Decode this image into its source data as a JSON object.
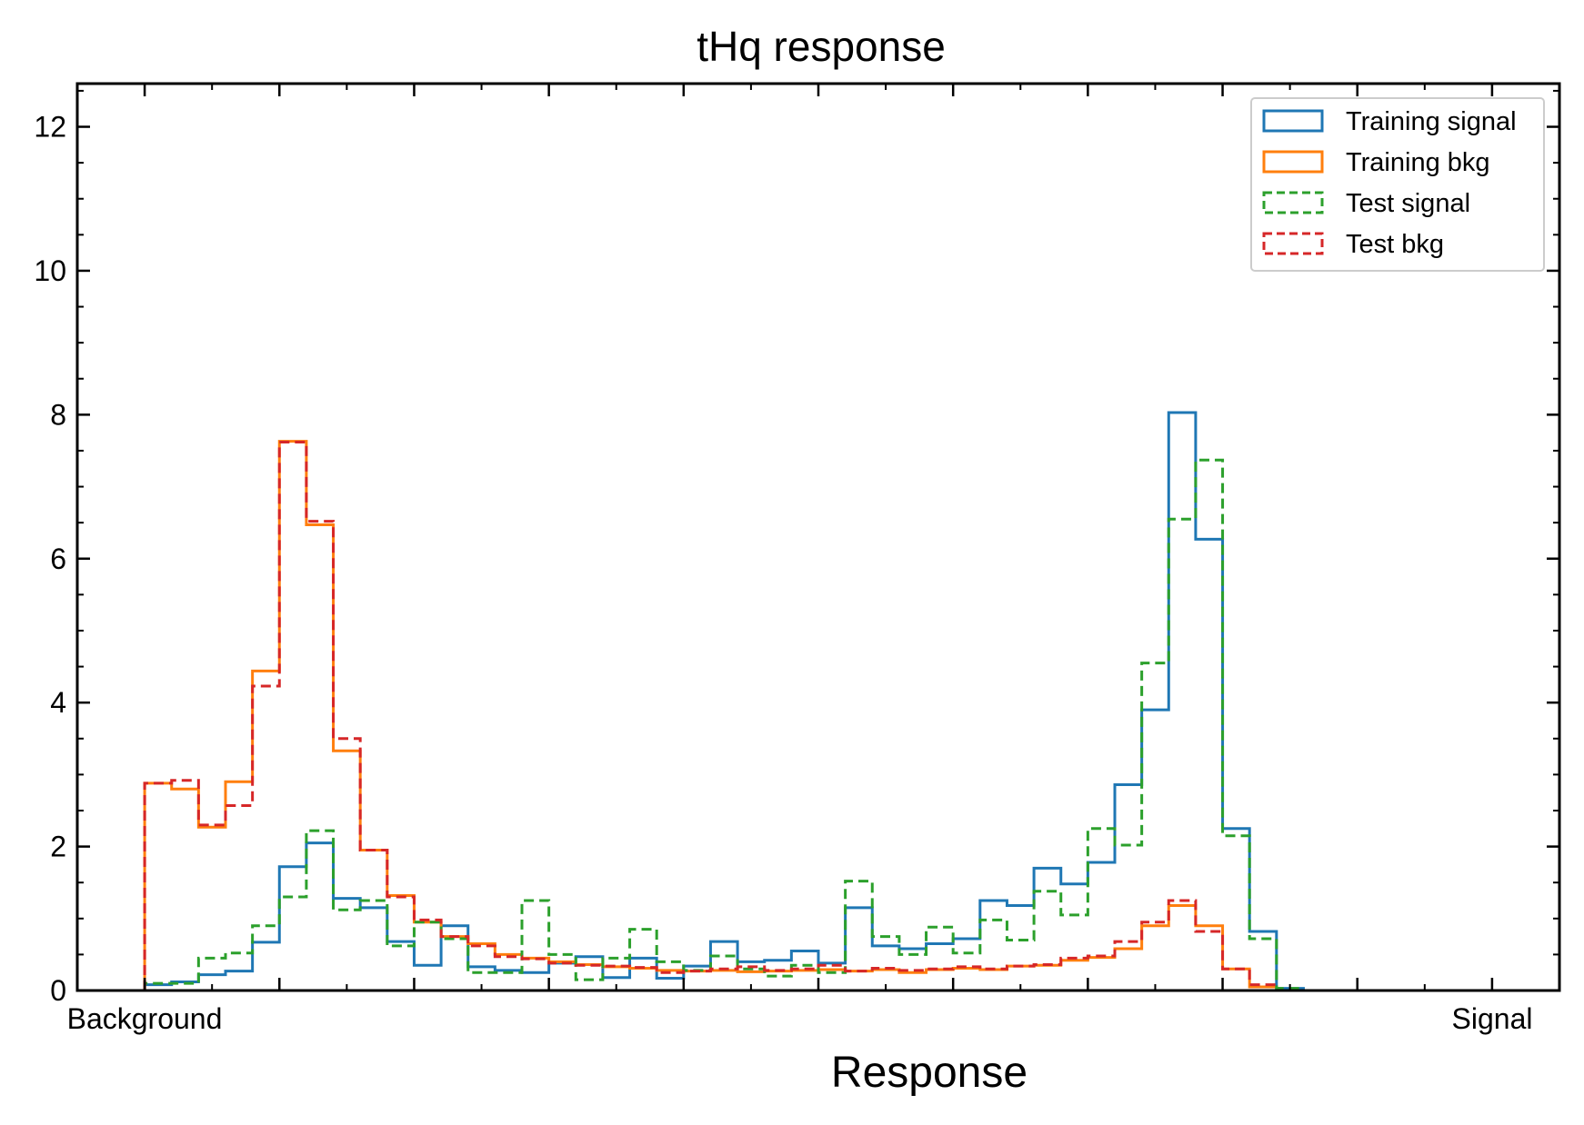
{
  "chart_data": {
    "type": "histogram",
    "title": "tHq response",
    "xlabel": "Response",
    "ylabel": "",
    "xlim": [
      -0.05,
      1.05
    ],
    "ylim": [
      0,
      12.6
    ],
    "yticks": [
      0,
      2,
      4,
      6,
      8,
      10,
      12
    ],
    "x_tick_labels": [
      {
        "x": 0,
        "label": "Background"
      },
      {
        "x": 1,
        "label": "Signal"
      }
    ],
    "bin_edges_start": 0,
    "bin_width": 0.02,
    "grid": false,
    "legend_position": "top-right",
    "series": [
      {
        "name": "Training signal",
        "color": "#1f77b4",
        "style": "solid",
        "values": [
          0.08,
          0.12,
          0.22,
          0.27,
          0.67,
          1.72,
          2.05,
          1.28,
          1.15,
          0.68,
          0.35,
          0.9,
          0.33,
          0.28,
          0.25,
          0.38,
          0.47,
          0.18,
          0.45,
          0.17,
          0.34,
          0.68,
          0.4,
          0.42,
          0.55,
          0.38,
          1.15,
          0.62,
          0.58,
          0.65,
          0.72,
          1.25,
          1.18,
          1.7,
          1.48,
          1.78,
          2.86,
          3.9,
          8.03,
          6.27,
          2.25,
          0.82,
          0.03,
          0,
          0,
          0,
          0,
          0,
          0,
          0
        ]
      },
      {
        "name": "Training bkg",
        "color": "#ff7f0e",
        "style": "solid",
        "values": [
          2.88,
          2.8,
          2.27,
          2.9,
          4.44,
          7.63,
          6.47,
          3.33,
          1.95,
          1.32,
          0.95,
          0.75,
          0.65,
          0.5,
          0.45,
          0.4,
          0.36,
          0.33,
          0.31,
          0.28,
          0.27,
          0.28,
          0.26,
          0.27,
          0.28,
          0.29,
          0.27,
          0.29,
          0.25,
          0.29,
          0.31,
          0.29,
          0.34,
          0.35,
          0.42,
          0.46,
          0.58,
          0.9,
          1.18,
          0.9,
          0.3,
          0.05,
          0,
          0,
          0,
          0,
          0,
          0,
          0,
          0
        ]
      },
      {
        "name": "Test signal",
        "color": "#2ca02c",
        "style": "dashed",
        "values": [
          0.1,
          0.1,
          0.45,
          0.52,
          0.9,
          1.3,
          2.22,
          1.12,
          1.25,
          0.62,
          0.95,
          0.72,
          0.25,
          0.25,
          1.25,
          0.5,
          0.15,
          0.45,
          0.85,
          0.4,
          0.28,
          0.48,
          0.3,
          0.2,
          0.35,
          0.25,
          1.52,
          0.75,
          0.5,
          0.88,
          0.52,
          0.98,
          0.7,
          1.38,
          1.05,
          2.25,
          2.02,
          4.55,
          6.55,
          7.37,
          2.15,
          0.72,
          0.03,
          0,
          0,
          0,
          0,
          0,
          0,
          0
        ]
      },
      {
        "name": "Test bkg",
        "color": "#d62728",
        "style": "dashed",
        "values": [
          2.88,
          2.92,
          2.3,
          2.57,
          4.23,
          7.62,
          6.52,
          3.5,
          1.95,
          1.3,
          0.98,
          0.75,
          0.62,
          0.47,
          0.44,
          0.38,
          0.35,
          0.34,
          0.32,
          0.25,
          0.27,
          0.3,
          0.33,
          0.28,
          0.3,
          0.35,
          0.27,
          0.31,
          0.28,
          0.3,
          0.33,
          0.3,
          0.34,
          0.36,
          0.45,
          0.48,
          0.68,
          0.95,
          1.25,
          0.82,
          0.3,
          0.08,
          0,
          0,
          0,
          0,
          0,
          0,
          0,
          0
        ]
      }
    ]
  }
}
